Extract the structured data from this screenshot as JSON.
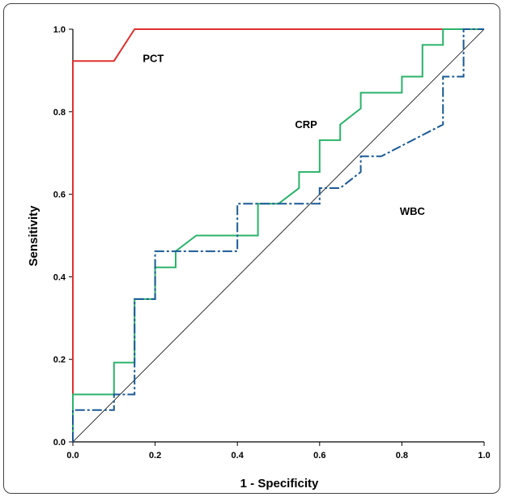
{
  "chart_data": {
    "type": "line",
    "xlabel": "1 - Specificity",
    "ylabel": "Sensitivity",
    "xlim": [
      0,
      1
    ],
    "ylim": [
      0,
      1
    ],
    "xticks": [
      "0.0",
      "0.2",
      "0.4",
      "0.6",
      "0.8",
      "1.0"
    ],
    "yticks": [
      "0.0",
      "0.2",
      "0.4",
      "0.6",
      "0.8",
      "1.0"
    ],
    "grid": false,
    "reference_line": {
      "x": [
        0,
        1
      ],
      "y": [
        0,
        1
      ],
      "color": "#000000"
    },
    "series": [
      {
        "name": "PCT",
        "color": "#e03030",
        "style": "solid",
        "x": [
          0,
          0,
          0.1,
          0.15,
          1.0
        ],
        "y": [
          0,
          0.923,
          0.923,
          1.0,
          1.0
        ]
      },
      {
        "name": "CRP",
        "color": "#2ab36a",
        "style": "solid",
        "x": [
          0,
          0,
          0.1,
          0.1,
          0.15,
          0.15,
          0.2,
          0.2,
          0.25,
          0.25,
          0.3,
          0.45,
          0.45,
          0.5,
          0.55,
          0.55,
          0.6,
          0.6,
          0.65,
          0.65,
          0.7,
          0.7,
          0.8,
          0.8,
          0.85,
          0.85,
          0.9,
          0.9,
          1.0
        ],
        "y": [
          0,
          0.115,
          0.115,
          0.192,
          0.192,
          0.346,
          0.346,
          0.423,
          0.423,
          0.462,
          0.5,
          0.5,
          0.577,
          0.577,
          0.615,
          0.654,
          0.654,
          0.731,
          0.731,
          0.769,
          0.808,
          0.846,
          0.846,
          0.885,
          0.885,
          0.962,
          0.962,
          1.0,
          1.0
        ]
      },
      {
        "name": "WBC",
        "color": "#1a5a96",
        "style": "dashdot",
        "x": [
          0,
          0,
          0.1,
          0.1,
          0.15,
          0.15,
          0.2,
          0.2,
          0.4,
          0.4,
          0.6,
          0.6,
          0.65,
          0.7,
          0.7,
          0.75,
          0.9,
          0.9,
          0.95,
          0.95,
          1.0
        ],
        "y": [
          0,
          0.077,
          0.077,
          0.115,
          0.115,
          0.346,
          0.346,
          0.462,
          0.462,
          0.577,
          0.577,
          0.615,
          0.615,
          0.654,
          0.692,
          0.692,
          0.769,
          0.885,
          0.885,
          1.0,
          1.0
        ]
      }
    ],
    "annotations": [
      {
        "text": "PCT",
        "x": 0.17,
        "y": 0.92
      },
      {
        "text": "CRP",
        "x": 0.54,
        "y": 0.76
      },
      {
        "text": "WBC",
        "x": 0.795,
        "y": 0.55
      }
    ]
  }
}
